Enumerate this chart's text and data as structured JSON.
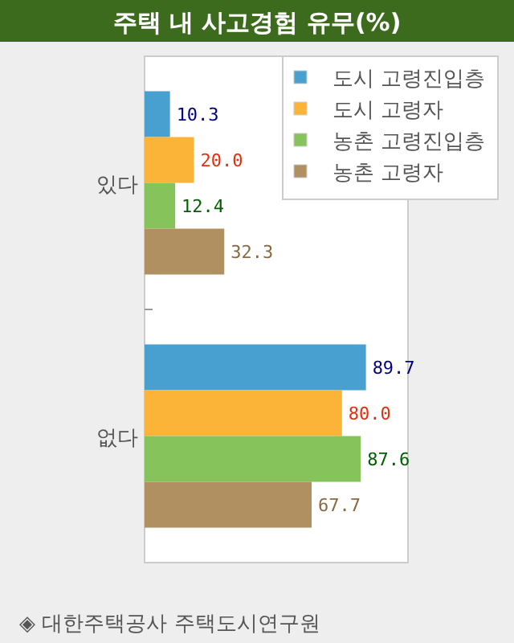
{
  "chart_data": {
    "type": "bar",
    "orientation": "horizontal",
    "title": "주택 내 사고경험 유무(%)",
    "categories": [
      "있다",
      "없다"
    ],
    "series": [
      {
        "name": "도시 고령진입층",
        "color": "#47a0d0",
        "values": [
          10.3,
          89.7
        ],
        "value_labels": [
          "10.3",
          "89.7"
        ]
      },
      {
        "name": "도시 고령자",
        "color": "#fbb437",
        "values": [
          20.0,
          80.0
        ],
        "value_labels": [
          "20.0",
          "80.0"
        ]
      },
      {
        "name": "농촌 고령진입층",
        "color": "#86c35b",
        "values": [
          12.4,
          87.6
        ],
        "value_labels": [
          "12.4",
          "87.6"
        ]
      },
      {
        "name": "농촌 고령자",
        "color": "#b08f61",
        "values": [
          32.3,
          67.7
        ],
        "value_labels": [
          "32.3",
          "67.7"
        ]
      }
    ],
    "legend": "top right",
    "annotations": [
      "◈ 대한주택공사 주택도시연구원"
    ]
  }
}
